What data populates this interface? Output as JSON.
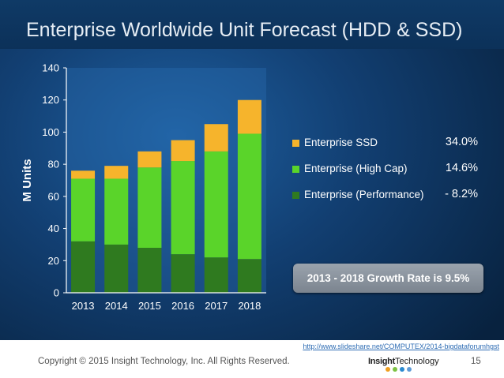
{
  "slide": {
    "title": "Enterprise Worldwide Unit Forecast (HDD & SSD)"
  },
  "chart_data": {
    "type": "bar",
    "stacked": true,
    "categories": [
      "2013",
      "2014",
      "2015",
      "2016",
      "2017",
      "2018"
    ],
    "series": [
      {
        "name": "Enterprise (Performance)",
        "values": [
          32,
          30,
          28,
          24,
          22,
          21
        ],
        "color": "#2f7a1f",
        "rate": "- 8.2%"
      },
      {
        "name": "Enterprise (High Cap)",
        "values": [
          39,
          41,
          50,
          58,
          66,
          78
        ],
        "color": "#5ad42a",
        "rate": "14.6%"
      },
      {
        "name": "Enterprise SSD",
        "values": [
          5,
          8,
          10,
          13,
          17,
          21
        ],
        "color": "#f6b42c",
        "rate": "34.0%"
      }
    ],
    "ylabel": "M Units",
    "ylim": [
      0,
      140
    ],
    "yticks": [
      "0",
      "20",
      "40",
      "60",
      "80",
      "100",
      "120",
      "140"
    ],
    "grid": false,
    "legend_position": "right",
    "legend_order": [
      2,
      1,
      0
    ]
  },
  "callout": {
    "text": "2013 - 2018 Growth Rate is 9.5%"
  },
  "footer": {
    "copyright": "Copyright © 2015 Insight Technology, Inc. All Rights Reserved.",
    "source_link": "http://www.slideshare.net/COMPUTEX/2014-bigdataforumhgst",
    "brand_strong": "Insight",
    "brand_rest": "Technology",
    "page_number": "15"
  }
}
